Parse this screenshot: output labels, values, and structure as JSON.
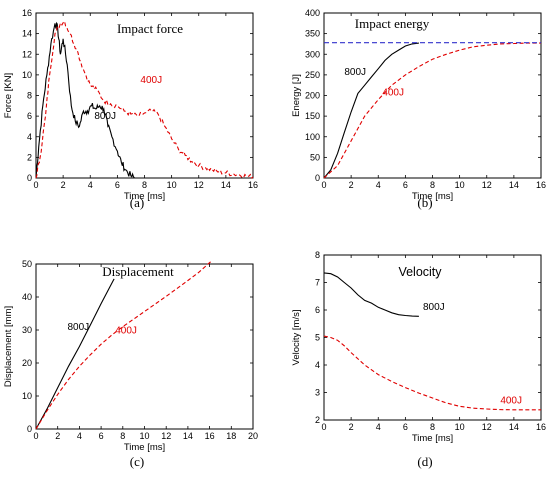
{
  "colors": {
    "black": "#000000",
    "red": "#e00000",
    "blue": "#3333cc"
  },
  "chart_data": [
    {
      "id": "a",
      "type": "line",
      "title": "Impact force",
      "xlabel": "Time [ms]",
      "ylabel": "Force [KN]",
      "xlim": [
        0,
        16
      ],
      "ylim": [
        0,
        16
      ],
      "xticks": [
        0,
        2,
        4,
        6,
        8,
        10,
        12,
        14,
        16
      ],
      "yticks": [
        0,
        2,
        4,
        6,
        8,
        10,
        12,
        14,
        16
      ],
      "subfig": "(a)",
      "series": [
        {
          "name": "800J",
          "color": "#000000",
          "dash": "solid",
          "noise": 0.35,
          "x": [
            0,
            0.2,
            0.5,
            0.8,
            1.1,
            1.4,
            1.6,
            1.8,
            2.0,
            2.3,
            2.6,
            2.9,
            3.2,
            3.5,
            3.8,
            4.1,
            4.4,
            4.7,
            5.0,
            5.3,
            5.6,
            6.0,
            6.3,
            6.6,
            7.0,
            7.3
          ],
          "y": [
            0,
            3,
            7,
            10,
            13,
            15,
            14.5,
            12,
            13.5,
            11,
            7,
            5.5,
            5,
            6.5,
            6.5,
            7,
            6.7,
            7,
            6.7,
            5,
            4,
            2.6,
            1.5,
            0.8,
            0.2,
            0
          ]
        },
        {
          "name": "400J",
          "color": "#e00000",
          "dash": "4,2.5",
          "noise": 0.25,
          "x": [
            0,
            0.3,
            0.7,
            1.0,
            1.4,
            1.8,
            2.1,
            2.5,
            3.0,
            3.5,
            4.0,
            4.5,
            5.0,
            5.5,
            6.0,
            6.5,
            7.0,
            7.5,
            8.0,
            8.5,
            9.0,
            9.5,
            10.0,
            10.5,
            11.0,
            11.5,
            12.0,
            12.5,
            13.0,
            13.5,
            14.0,
            14.5,
            15.0,
            15.5,
            16.0
          ],
          "y": [
            0,
            2,
            6,
            10,
            14,
            15,
            15.2,
            14,
            12.5,
            10.5,
            9,
            8.5,
            7.5,
            7.2,
            7,
            6.5,
            6.2,
            6,
            6.3,
            6.5,
            6.2,
            5,
            3.8,
            2.8,
            2.2,
            1.6,
            1.2,
            1.0,
            0.8,
            0.6,
            0.5,
            0.4,
            0.3,
            0.2,
            0.1
          ]
        }
      ],
      "annotations": [
        {
          "text": "400J",
          "x": 7.7,
          "y": 9.2,
          "color": "#e00000"
        },
        {
          "text": "800J",
          "x": 4.3,
          "y": 5.7,
          "color": "#000000"
        }
      ]
    },
    {
      "id": "b",
      "type": "line",
      "title": "Impact energy",
      "xlabel": "Time [ms]",
      "ylabel": "Energy [J]",
      "xlim": [
        0,
        16
      ],
      "ylim": [
        0,
        400
      ],
      "xticks": [
        0,
        2,
        4,
        6,
        8,
        10,
        12,
        14,
        16
      ],
      "yticks": [
        0,
        50,
        100,
        150,
        200,
        250,
        300,
        350,
        400
      ],
      "subfig": "(b)",
      "series": [
        {
          "name": "800J",
          "color": "#000000",
          "dash": "solid",
          "x": [
            0,
            0.5,
            1,
            1.5,
            2,
            2.5,
            3,
            3.5,
            4,
            4.5,
            5,
            5.5,
            6,
            6.5,
            7
          ],
          "y": [
            0,
            20,
            60,
            110,
            160,
            205,
            225,
            245,
            265,
            285,
            300,
            310,
            320,
            325,
            327
          ]
        },
        {
          "name": "400J",
          "color": "#e00000",
          "dash": "4,2.5",
          "x": [
            0,
            1,
            2,
            3,
            4,
            5,
            6,
            7,
            8,
            9,
            10,
            11,
            12,
            13,
            14,
            15,
            16
          ],
          "y": [
            0,
            30,
            90,
            150,
            190,
            225,
            250,
            270,
            288,
            300,
            310,
            318,
            322,
            325,
            326,
            327,
            327
          ]
        },
        {
          "name": "",
          "color": "#3333cc",
          "dash": "5,3",
          "x": [
            0,
            16
          ],
          "y": [
            328,
            328
          ]
        }
      ],
      "annotations": [
        {
          "text": "800J",
          "x": 1.5,
          "y": 250,
          "color": "#000000"
        },
        {
          "text": "400J",
          "x": 4.3,
          "y": 200,
          "color": "#e00000"
        }
      ]
    },
    {
      "id": "c",
      "type": "line",
      "title": "Displacement",
      "xlabel": "Time [ms]",
      "ylabel": "Displacement [mm]",
      "xlim": [
        0,
        20
      ],
      "ylim": [
        0,
        50
      ],
      "xticks": [
        0,
        2,
        4,
        6,
        8,
        10,
        12,
        14,
        16,
        18,
        20
      ],
      "yticks": [
        0,
        10,
        20,
        30,
        40,
        50
      ],
      "subfig": "(c)",
      "series": [
        {
          "name": "800J",
          "color": "#000000",
          "dash": "solid",
          "x": [
            0,
            1,
            2,
            3,
            4,
            5,
            6,
            7.2
          ],
          "y": [
            0,
            6,
            12.5,
            19,
            25,
            31.5,
            38,
            45.5
          ]
        },
        {
          "name": "400J",
          "color": "#e00000",
          "dash": "4,2.5",
          "x": [
            0,
            1,
            2,
            3,
            4,
            5,
            6,
            7,
            8,
            9,
            10,
            11,
            12,
            13,
            14,
            15,
            16.2
          ],
          "y": [
            0,
            5.5,
            10.5,
            15,
            19,
            22.5,
            25.7,
            28.5,
            31,
            33.3,
            35.6,
            37.9,
            40.2,
            42.6,
            45,
            47.5,
            51
          ]
        }
      ],
      "annotations": [
        {
          "text": "800J",
          "x": 2.9,
          "y": 30,
          "color": "#000000"
        },
        {
          "text": "400J",
          "x": 7.3,
          "y": 29,
          "color": "#e00000"
        }
      ]
    },
    {
      "id": "d",
      "type": "line",
      "title": "Velocity",
      "xlabel": "Time [ms]",
      "ylabel": "Velocity [m/s]",
      "xlim": [
        0,
        16
      ],
      "ylim": [
        2,
        8
      ],
      "xticks": [
        0,
        2,
        4,
        6,
        8,
        10,
        12,
        14,
        16
      ],
      "yticks": [
        2,
        3,
        4,
        5,
        6,
        7,
        8
      ],
      "subfig": "(d)",
      "series": [
        {
          "name": "800J",
          "color": "#000000",
          "dash": "solid",
          "x": [
            0,
            0.5,
            1,
            1.5,
            2,
            2.5,
            3,
            3.5,
            4,
            4.5,
            5,
            5.5,
            6,
            6.5,
            7
          ],
          "y": [
            7.35,
            7.32,
            7.2,
            7.0,
            6.8,
            6.55,
            6.35,
            6.25,
            6.1,
            6.0,
            5.9,
            5.83,
            5.8,
            5.78,
            5.77
          ]
        },
        {
          "name": "400J",
          "color": "#e00000",
          "dash": "4,2.5",
          "x": [
            0,
            0.5,
            1,
            1.5,
            2,
            3,
            4,
            5,
            6,
            7,
            8,
            9,
            10,
            11,
            12,
            13,
            14,
            15,
            16
          ],
          "y": [
            5.05,
            5.0,
            4.9,
            4.7,
            4.45,
            4.0,
            3.65,
            3.4,
            3.18,
            2.98,
            2.8,
            2.62,
            2.5,
            2.43,
            2.4,
            2.38,
            2.37,
            2.37,
            2.37
          ]
        }
      ],
      "annotations": [
        {
          "text": "800J",
          "x": 7.3,
          "y": 6.0,
          "color": "#000000"
        },
        {
          "text": "400J",
          "x": 13.0,
          "y": 2.6,
          "color": "#e00000"
        }
      ]
    }
  ]
}
